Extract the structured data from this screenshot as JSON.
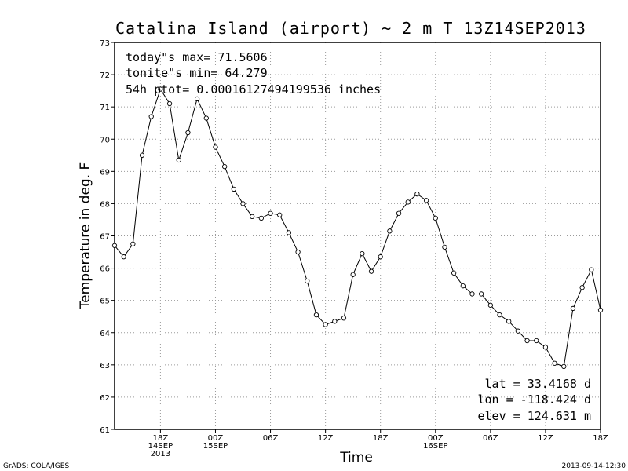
{
  "chart_data": {
    "type": "line",
    "title": "Catalina Island (airport) ~ 2 m T    13Z14SEP2013",
    "xlabel": "Time",
    "ylabel": "Temperature in deg. F",
    "ylim": [
      61,
      73
    ],
    "yticks": [
      "61",
      "62",
      "63",
      "64",
      "65",
      "66",
      "67",
      "68",
      "69",
      "70",
      "71",
      "72",
      "73"
    ],
    "xticks": [
      {
        "hour": 5,
        "lines": [
          "18Z",
          "14SEP",
          "2013"
        ]
      },
      {
        "hour": 11,
        "lines": [
          "00Z",
          "15SEP"
        ]
      },
      {
        "hour": 17,
        "lines": [
          "06Z"
        ]
      },
      {
        "hour": 23,
        "lines": [
          "12Z"
        ]
      },
      {
        "hour": 29,
        "lines": [
          "18Z"
        ]
      },
      {
        "hour": 35,
        "lines": [
          "00Z",
          "16SEP"
        ]
      },
      {
        "hour": 41,
        "lines": [
          "06Z"
        ]
      },
      {
        "hour": 47,
        "lines": [
          "12Z"
        ]
      },
      {
        "hour": 53,
        "lines": [
          "18Z"
        ]
      }
    ],
    "x_range_hours": [
      0,
      53
    ],
    "x_start": "13Z14SEP2013",
    "grid": true,
    "marker": "open-circle",
    "series": [
      {
        "values": [
          66.7,
          66.35,
          66.75,
          69.5,
          70.7,
          71.55,
          71.1,
          69.35,
          70.2,
          71.25,
          70.65,
          69.75,
          69.15,
          68.45,
          68.0,
          67.6,
          67.55,
          67.7,
          67.65,
          67.1,
          66.5,
          65.6,
          64.55,
          64.25,
          64.35,
          64.45,
          65.8,
          66.45,
          65.9,
          66.35,
          67.15,
          67.7,
          68.05,
          68.3,
          68.1,
          67.55,
          66.65,
          65.85,
          65.45,
          65.2,
          65.2,
          64.85,
          64.55,
          64.35,
          64.05,
          63.75,
          63.75,
          63.55,
          63.05,
          62.95,
          64.75,
          65.4,
          65.95,
          64.7
        ]
      }
    ],
    "annotations": {
      "max": "today\"s max= 71.5606",
      "min": "tonite\"s min= 64.279",
      "ptot": "54h ptot= 0.00016127494199536 inches",
      "lat": "lat = 33.4168 d",
      "lon": "lon = -118.424 d",
      "elev": "elev = 124.631 m"
    }
  },
  "footer": {
    "left": "GrADS: COLA/IGES",
    "right": "2013-09-14-12:30"
  }
}
